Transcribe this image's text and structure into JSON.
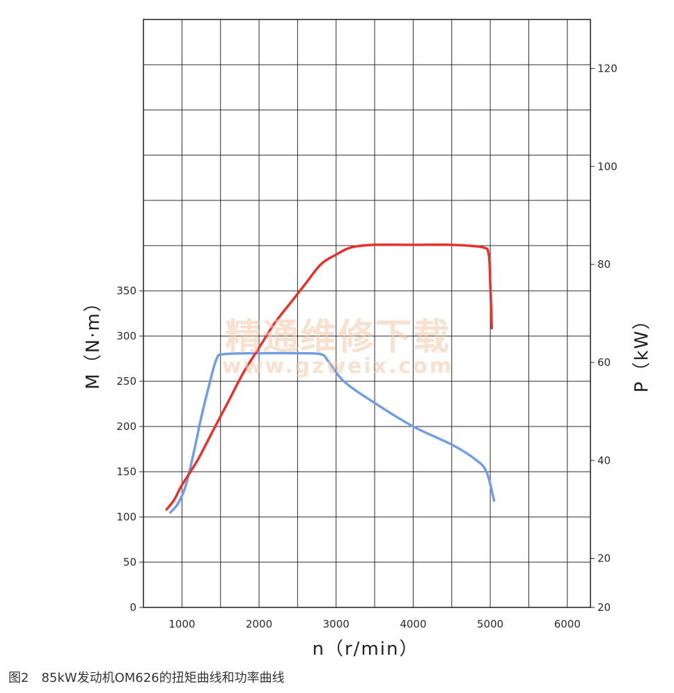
{
  "chart_data": {
    "type": "line",
    "xlabel": "n（r/min）",
    "ylabel_left": "M（N·m）",
    "ylabel_right": "P（kW）",
    "x_ticks": [
      "1000",
      "2000",
      "3000",
      "4000",
      "5000",
      "6000"
    ],
    "y_left_ticks": [
      "0",
      "50",
      "100",
      "150",
      "200",
      "250",
      "300",
      "350"
    ],
    "y_right_ticks": [
      "20",
      "20",
      "40",
      "60",
      "80",
      "100",
      "120"
    ],
    "xlim": [
      500,
      6300
    ],
    "ylim_left": [
      0,
      650
    ],
    "ylim_right": [
      10,
      130
    ],
    "grid": true,
    "colors": {
      "torque": "#6f9ee6",
      "power": "#e8302c",
      "grid": "#2a2a2a"
    },
    "series": [
      {
        "key": "torque",
        "axis": "left",
        "x": [
          850,
          950,
          1050,
          1150,
          1250,
          1350,
          1450,
          1550,
          2000,
          2500,
          2800,
          2900,
          3100,
          3500,
          4000,
          4500,
          4800,
          4950,
          5050
        ],
        "y": [
          105,
          115,
          135,
          170,
          210,
          245,
          275,
          280,
          281,
          281,
          280,
          272,
          250,
          226,
          200,
          180,
          164,
          150,
          118
        ]
      },
      {
        "key": "power",
        "axis": "right",
        "x": [
          800,
          900,
          1000,
          1200,
          1400,
          1600,
          1800,
          2000,
          2200,
          2400,
          2600,
          2800,
          3000,
          3200,
          3500,
          4000,
          4500,
          4900,
          4980,
          5000,
          5020
        ],
        "y": [
          30,
          32,
          35,
          40,
          46,
          52,
          58,
          63,
          68,
          72,
          76,
          80,
          82,
          83.5,
          84,
          84,
          84,
          83.5,
          82,
          76,
          67
        ]
      }
    ]
  },
  "watermark": {
    "line1": "精通维修下载",
    "line2": "www.gzweix.com"
  },
  "caption": "图2　85kW发动机OM626的扭矩曲线和功率曲线"
}
